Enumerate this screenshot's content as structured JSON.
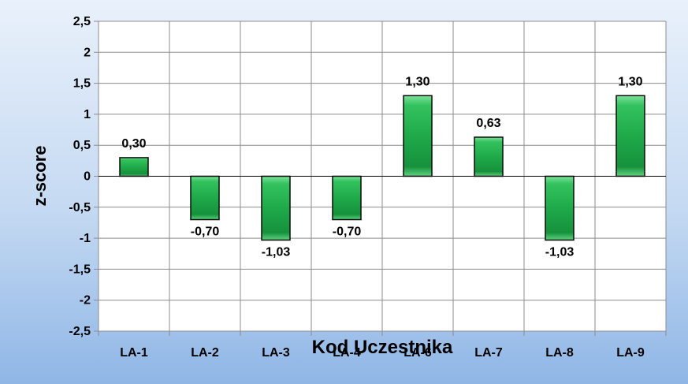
{
  "chart_data": {
    "type": "bar",
    "categories": [
      "LA-1",
      "LA-2",
      "LA-3",
      "LA-4",
      "LA-6",
      "LA-7",
      "LA-8",
      "LA-9"
    ],
    "values": [
      0.3,
      -0.7,
      -1.03,
      -0.7,
      1.3,
      0.63,
      -1.03,
      1.3
    ],
    "data_labels": [
      "0,30",
      "-0,70",
      "-1,03",
      "-0,70",
      "1,30",
      "0,63",
      "-1,03",
      "1,30"
    ],
    "xlabel": "Kod Uczestnika",
    "ylabel": "z-score",
    "ylim": [
      -2.5,
      2.5
    ],
    "yticks": [
      2.5,
      2,
      1.5,
      1,
      0.5,
      0,
      -0.5,
      -1,
      -1.5,
      -2,
      -2.5
    ],
    "ytick_labels": [
      "2,5",
      "2",
      "1,5",
      "1",
      "0,5",
      "0",
      "-0,5",
      "-1",
      "-1,5",
      "-2",
      "-2,5"
    ],
    "grid": true,
    "bar_color": "#1faa4a",
    "bar_highlight": "#7ee39a",
    "background_top": "#e9f1fb",
    "background_bottom": "#8fb6e6"
  }
}
